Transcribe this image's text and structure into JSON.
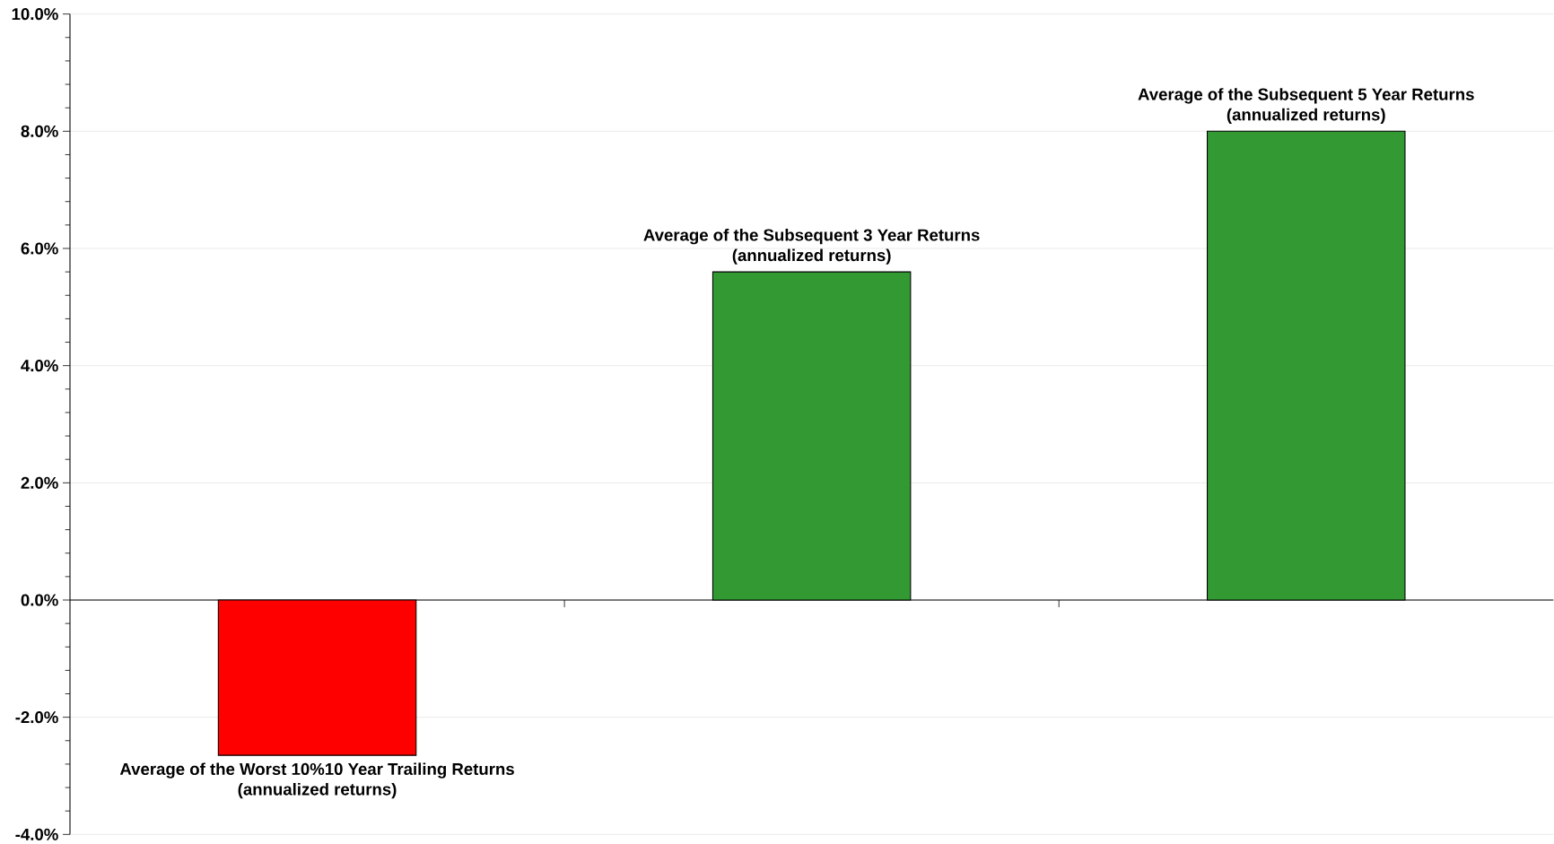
{
  "chart_data": {
    "type": "bar",
    "categories": [
      "Average of the Worst 10%10 Year Trailing Returns",
      "Average of the Subsequent 3 Year Returns",
      "Average of the Subsequent 5 Year Returns"
    ],
    "values": [
      -2.65,
      5.6,
      8.0
    ],
    "colors": [
      "#ff0000",
      "#339933",
      "#339933"
    ],
    "annotations": [
      "(annualized returns)",
      "(annualized returns)",
      "(annualized returns)"
    ],
    "ylim": [
      -4,
      10
    ],
    "yticks": [
      {
        "value": -4,
        "label": "-4.0%"
      },
      {
        "value": -2,
        "label": "-2.0%"
      },
      {
        "value": 0,
        "label": "0.0%"
      },
      {
        "value": 2,
        "label": "2.0%"
      },
      {
        "value": 4,
        "label": "4.0%"
      },
      {
        "value": 6,
        "label": "6.0%"
      },
      {
        "value": 8,
        "label": "8.0%"
      },
      {
        "value": 10,
        "label": "10.0%"
      }
    ],
    "grid": "y"
  }
}
